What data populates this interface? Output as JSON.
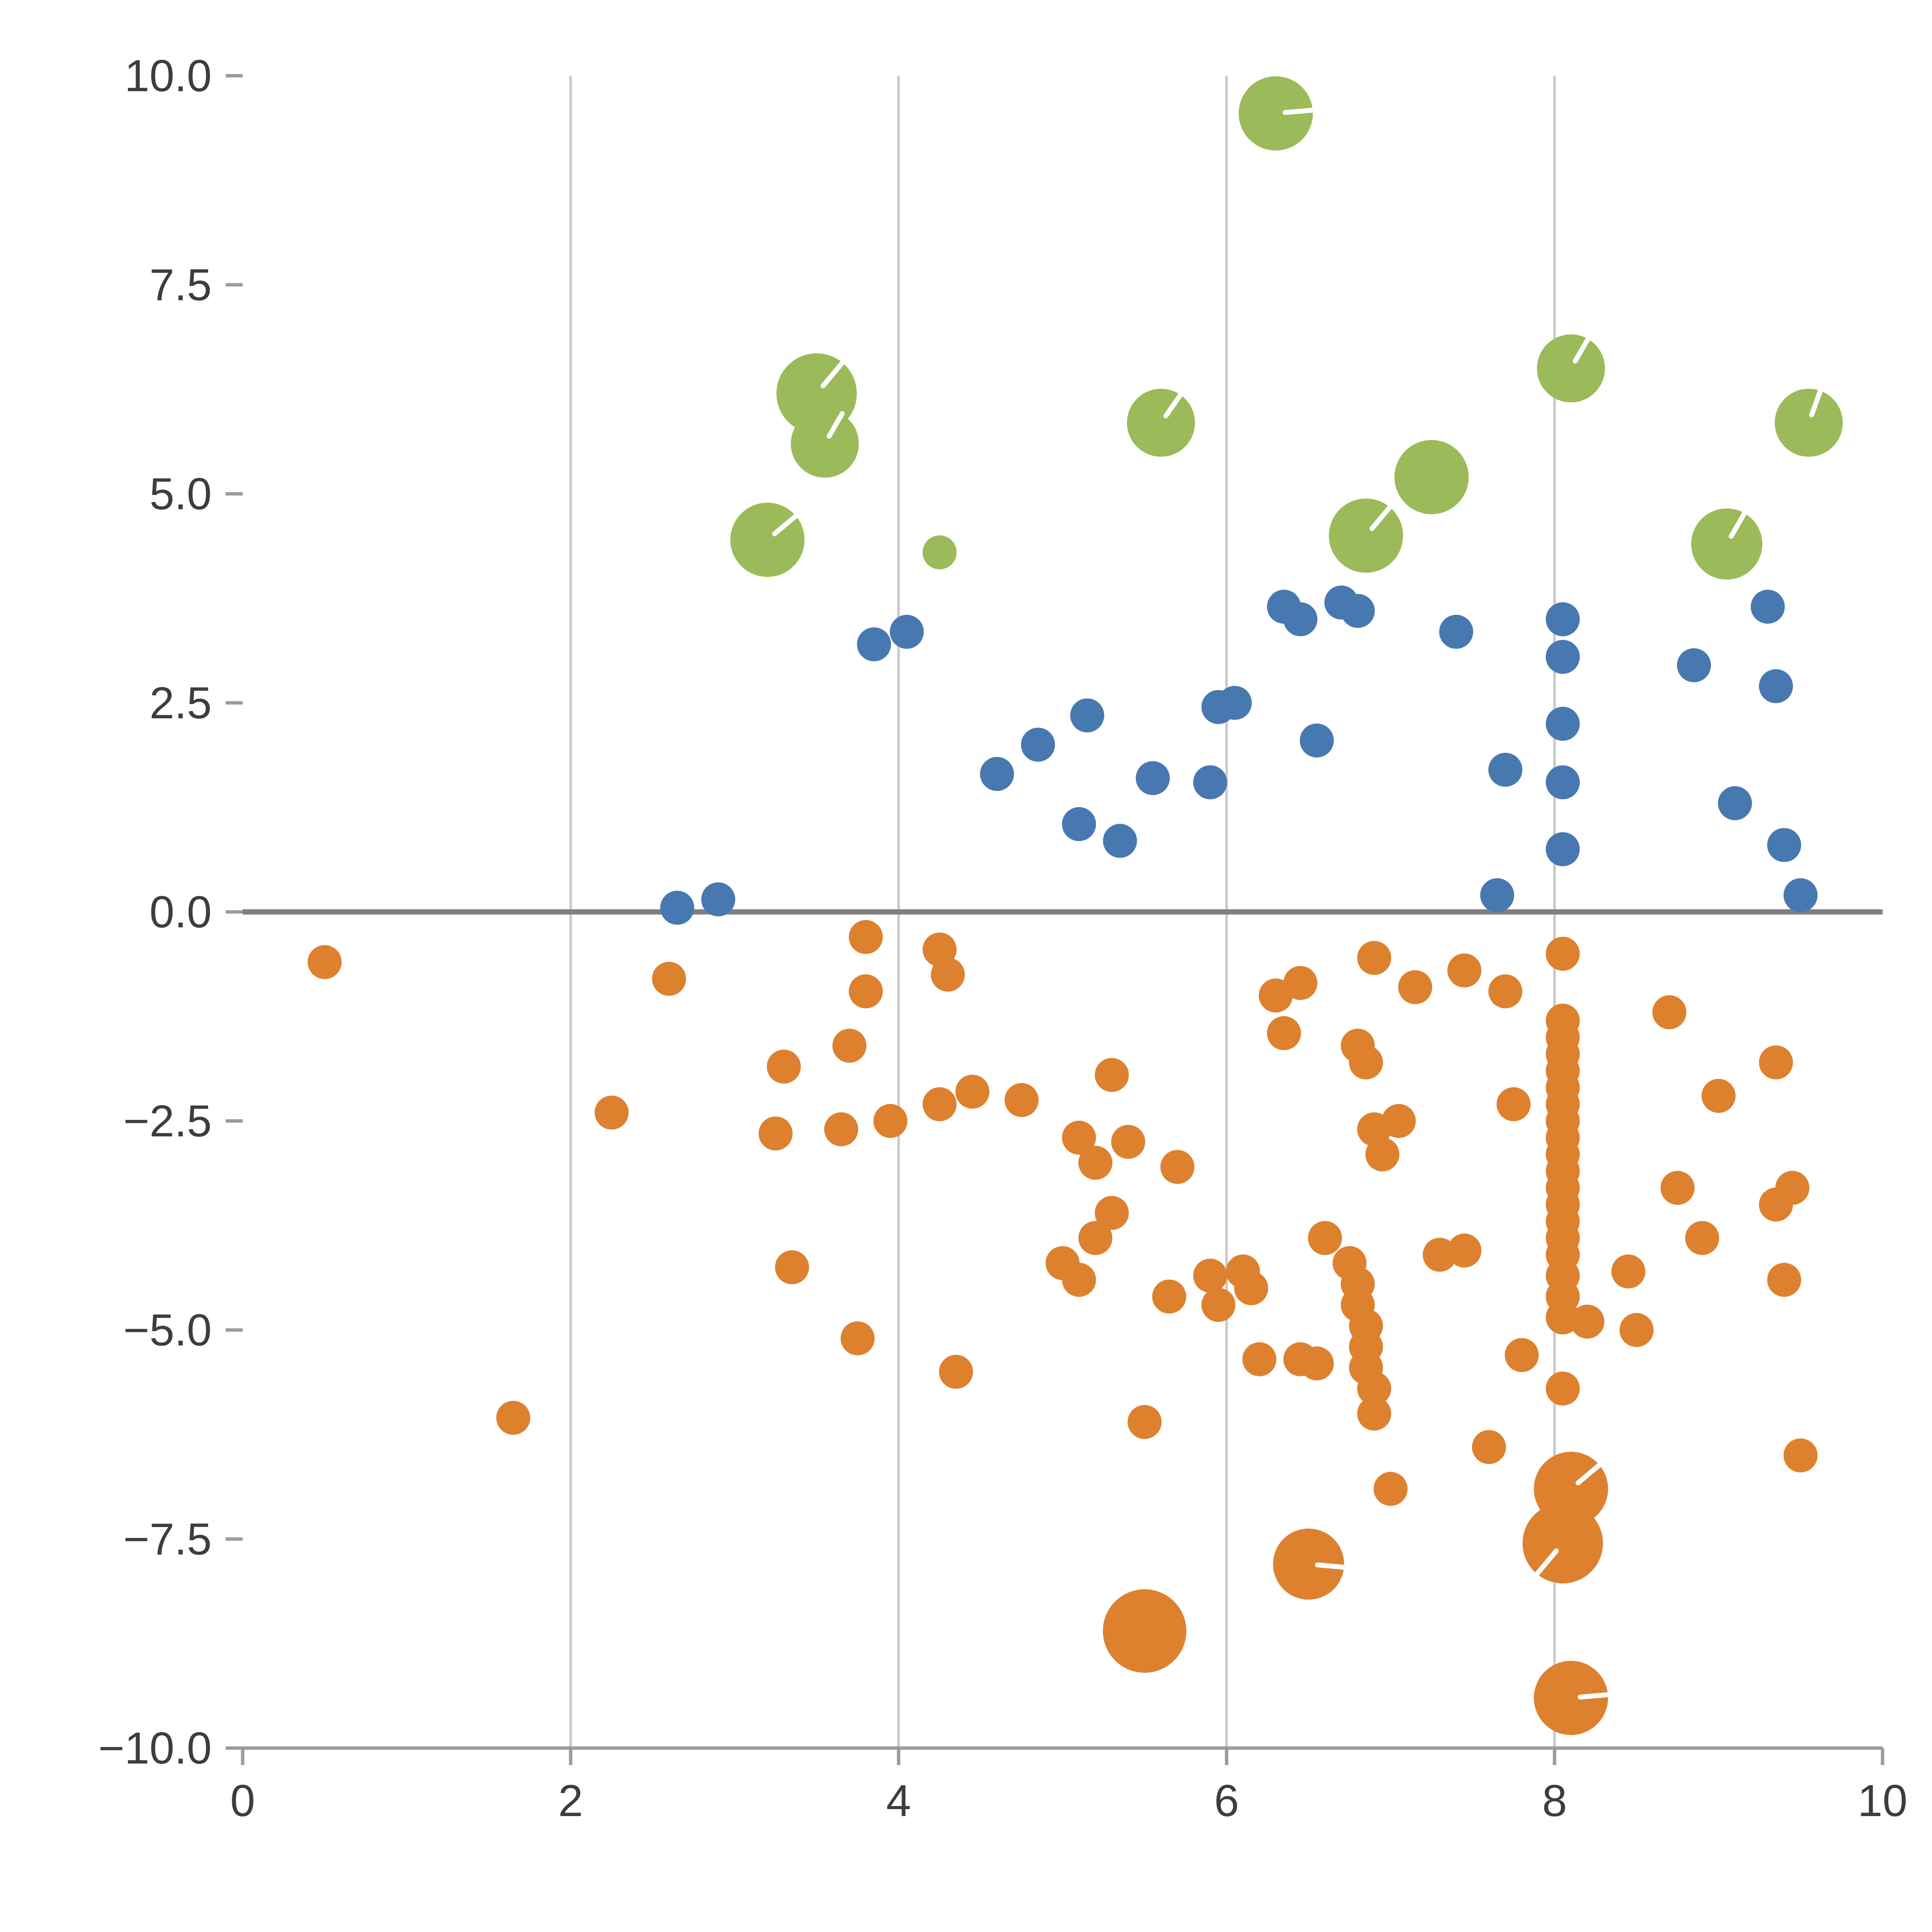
{
  "figure": {
    "background": "#ffffff"
  },
  "chart_data": {
    "type": "scatter",
    "title": "",
    "xlabel": "",
    "ylabel": "",
    "xlim": [
      0,
      10
    ],
    "ylim": [
      -10,
      10
    ],
    "grid": "vertical-only",
    "legend": "none",
    "grid_x": [
      2,
      4,
      6,
      8
    ],
    "zero_line_y": 0,
    "x_ticks": [
      {
        "v": 0,
        "label": "0"
      },
      {
        "v": 2,
        "label": "2"
      },
      {
        "v": 4,
        "label": "4"
      },
      {
        "v": 6,
        "label": "6"
      },
      {
        "v": 8,
        "label": "8"
      },
      {
        "v": 10,
        "label": "10"
      }
    ],
    "y_ticks": [
      {
        "v": 10,
        "label": "10.0"
      },
      {
        "v": 7.5,
        "label": "7.5"
      },
      {
        "v": 5,
        "label": "5.0"
      },
      {
        "v": 2.5,
        "label": "2.5"
      },
      {
        "v": 0,
        "label": "0.0"
      },
      {
        "v": -2.5,
        "label": "−2.5"
      },
      {
        "v": -5,
        "label": "−5.0"
      },
      {
        "v": -7.5,
        "label": "−7.5"
      },
      {
        "v": -10,
        "label": "−10.0"
      }
    ],
    "colors": {
      "grid": "#c9c9c9",
      "zero": "#7f7f7f",
      "axis": "#9b9b9b",
      "text": "#3d3d3d",
      "green": "#9bba59",
      "blue": "#4878b0",
      "orange": "#dd812f",
      "highlight": "#ffffff"
    },
    "series": [
      {
        "name": "green",
        "color": "#9bba59",
        "points": [
          [
            6.3,
            9.55,
            24,
            5
          ],
          [
            3.5,
            6.2,
            26,
            50
          ],
          [
            3.55,
            5.6,
            22,
            60
          ],
          [
            3.2,
            4.45,
            24,
            40
          ],
          [
            4.25,
            4.3,
            11
          ],
          [
            5.6,
            5.85,
            22,
            55
          ],
          [
            6.85,
            4.5,
            24,
            50
          ],
          [
            7.25,
            5.2,
            24
          ],
          [
            8.1,
            6.5,
            22,
            60
          ],
          [
            9.05,
            4.4,
            23,
            60
          ],
          [
            9.55,
            5.85,
            22,
            70
          ]
        ]
      },
      {
        "name": "blue",
        "color": "#4878b0",
        "points": [
          [
            2.65,
            0.05,
            11
          ],
          [
            2.9,
            0.15,
            11
          ],
          [
            3.85,
            3.2,
            11
          ],
          [
            4.05,
            3.35,
            11
          ],
          [
            4.6,
            1.65,
            11
          ],
          [
            4.85,
            2.0,
            11
          ],
          [
            5.15,
            2.35,
            11
          ],
          [
            5.1,
            1.05,
            11
          ],
          [
            5.35,
            0.85,
            11
          ],
          [
            5.55,
            1.6,
            11
          ],
          [
            5.9,
            1.55,
            11
          ],
          [
            5.95,
            2.45,
            11
          ],
          [
            6.05,
            2.5,
            11
          ],
          [
            6.35,
            3.65,
            11
          ],
          [
            6.45,
            3.5,
            11
          ],
          [
            6.55,
            2.05,
            11
          ],
          [
            6.7,
            3.7,
            11
          ],
          [
            6.8,
            3.6,
            11
          ],
          [
            7.4,
            3.35,
            11
          ],
          [
            7.65,
            0.2,
            11
          ],
          [
            7.7,
            1.7,
            11
          ],
          [
            8.05,
            3.5,
            11
          ],
          [
            8.05,
            3.05,
            11
          ],
          [
            8.05,
            2.25,
            11
          ],
          [
            8.05,
            1.55,
            11
          ],
          [
            8.05,
            0.75,
            11
          ],
          [
            8.85,
            2.95,
            11
          ],
          [
            9.1,
            1.3,
            11
          ],
          [
            9.3,
            3.65,
            11
          ],
          [
            9.35,
            2.7,
            11
          ],
          [
            9.4,
            0.8,
            11
          ],
          [
            9.5,
            0.2,
            11
          ]
        ]
      },
      {
        "name": "orange",
        "color": "#dd812f",
        "points": [
          [
            0.5,
            -0.6,
            11
          ],
          [
            1.65,
            -6.05,
            11
          ],
          [
            2.25,
            -2.4,
            11
          ],
          [
            2.6,
            -0.8,
            11
          ],
          [
            3.3,
            -1.85,
            11
          ],
          [
            3.25,
            -2.65,
            11
          ],
          [
            3.35,
            -4.25,
            11
          ],
          [
            3.7,
            -1.6,
            11
          ],
          [
            3.65,
            -2.6,
            11
          ],
          [
            3.8,
            -0.3,
            11
          ],
          [
            3.8,
            -0.95,
            11
          ],
          [
            3.75,
            -5.1,
            11
          ],
          [
            3.95,
            -2.5,
            11
          ],
          [
            4.25,
            -0.45,
            11
          ],
          [
            4.3,
            -0.75,
            11
          ],
          [
            4.25,
            -2.3,
            11
          ],
          [
            4.45,
            -2.15,
            11
          ],
          [
            4.35,
            -5.5,
            11
          ],
          [
            4.75,
            -2.25,
            11
          ],
          [
            5.0,
            -4.2,
            11
          ],
          [
            5.1,
            -4.4,
            11
          ],
          [
            5.1,
            -2.7,
            11
          ],
          [
            5.2,
            -3.0,
            11
          ],
          [
            5.2,
            -3.9,
            11
          ],
          [
            5.3,
            -3.6,
            11
          ],
          [
            5.3,
            -1.95,
            11
          ],
          [
            5.4,
            -2.75,
            11
          ],
          [
            5.5,
            -6.1,
            11
          ],
          [
            5.5,
            -8.6,
            27
          ],
          [
            5.7,
            -3.05,
            11
          ],
          [
            5.65,
            -4.6,
            11
          ],
          [
            5.9,
            -4.35,
            11
          ],
          [
            5.95,
            -4.7,
            11
          ],
          [
            6.1,
            -4.3,
            11
          ],
          [
            6.15,
            -4.5,
            11
          ],
          [
            6.2,
            -5.35,
            11
          ],
          [
            6.3,
            -1.0,
            11
          ],
          [
            6.35,
            -1.45,
            11
          ],
          [
            6.45,
            -0.85,
            11
          ],
          [
            6.45,
            -5.35,
            11
          ],
          [
            6.55,
            -5.4,
            11
          ],
          [
            6.6,
            -3.9,
            11
          ],
          [
            6.5,
            -7.8,
            23,
            -5
          ],
          [
            6.75,
            -4.2,
            11
          ],
          [
            6.8,
            -4.45,
            11
          ],
          [
            6.8,
            -4.7,
            11
          ],
          [
            6.85,
            -4.95,
            11
          ],
          [
            6.85,
            -5.2,
            11
          ],
          [
            6.85,
            -5.45,
            11
          ],
          [
            6.9,
            -5.7,
            11
          ],
          [
            6.9,
            -6.0,
            11
          ],
          [
            6.8,
            -1.6,
            11
          ],
          [
            6.85,
            -1.8,
            11
          ],
          [
            6.9,
            -0.55,
            11
          ],
          [
            6.9,
            -2.6,
            11
          ],
          [
            6.95,
            -2.9,
            11
          ],
          [
            7.05,
            -2.5,
            11
          ],
          [
            7.0,
            -6.9,
            11
          ],
          [
            7.15,
            -0.9,
            11
          ],
          [
            7.3,
            -4.1,
            11
          ],
          [
            7.45,
            -4.05,
            11
          ],
          [
            7.45,
            -0.7,
            11
          ],
          [
            7.6,
            -6.4,
            11
          ],
          [
            7.7,
            -0.95,
            11
          ],
          [
            7.75,
            -2.3,
            11
          ],
          [
            7.8,
            -5.3,
            11
          ],
          [
            8.05,
            -0.5,
            11
          ],
          [
            8.05,
            -1.3,
            11
          ],
          [
            8.05,
            -1.5,
            11
          ],
          [
            8.05,
            -1.7,
            11
          ],
          [
            8.05,
            -1.9,
            11
          ],
          [
            8.05,
            -2.1,
            11
          ],
          [
            8.05,
            -2.3,
            11
          ],
          [
            8.05,
            -2.5,
            11
          ],
          [
            8.05,
            -2.7,
            11
          ],
          [
            8.05,
            -2.9,
            11
          ],
          [
            8.05,
            -3.1,
            11
          ],
          [
            8.05,
            -3.3,
            11
          ],
          [
            8.05,
            -3.5,
            11
          ],
          [
            8.05,
            -3.7,
            11
          ],
          [
            8.05,
            -3.9,
            11
          ],
          [
            8.05,
            -4.1,
            11
          ],
          [
            8.05,
            -4.35,
            11
          ],
          [
            8.05,
            -4.6,
            11
          ],
          [
            8.05,
            -4.85,
            11
          ],
          [
            8.05,
            -5.7,
            11
          ],
          [
            8.1,
            -6.9,
            24,
            40
          ],
          [
            8.05,
            -7.55,
            26,
            -130
          ],
          [
            8.1,
            -9.4,
            24,
            5
          ],
          [
            8.2,
            -4.9,
            11
          ],
          [
            8.45,
            -4.3,
            11
          ],
          [
            8.5,
            -5.0,
            11
          ],
          [
            8.7,
            -1.2,
            11
          ],
          [
            8.75,
            -3.3,
            11
          ],
          [
            8.9,
            -3.9,
            11
          ],
          [
            9.0,
            -2.2,
            11
          ],
          [
            9.35,
            -1.8,
            11
          ],
          [
            9.35,
            -3.5,
            11
          ],
          [
            9.45,
            -3.3,
            11
          ],
          [
            9.4,
            -4.4,
            11
          ],
          [
            9.5,
            -6.5,
            11
          ]
        ]
      }
    ]
  }
}
